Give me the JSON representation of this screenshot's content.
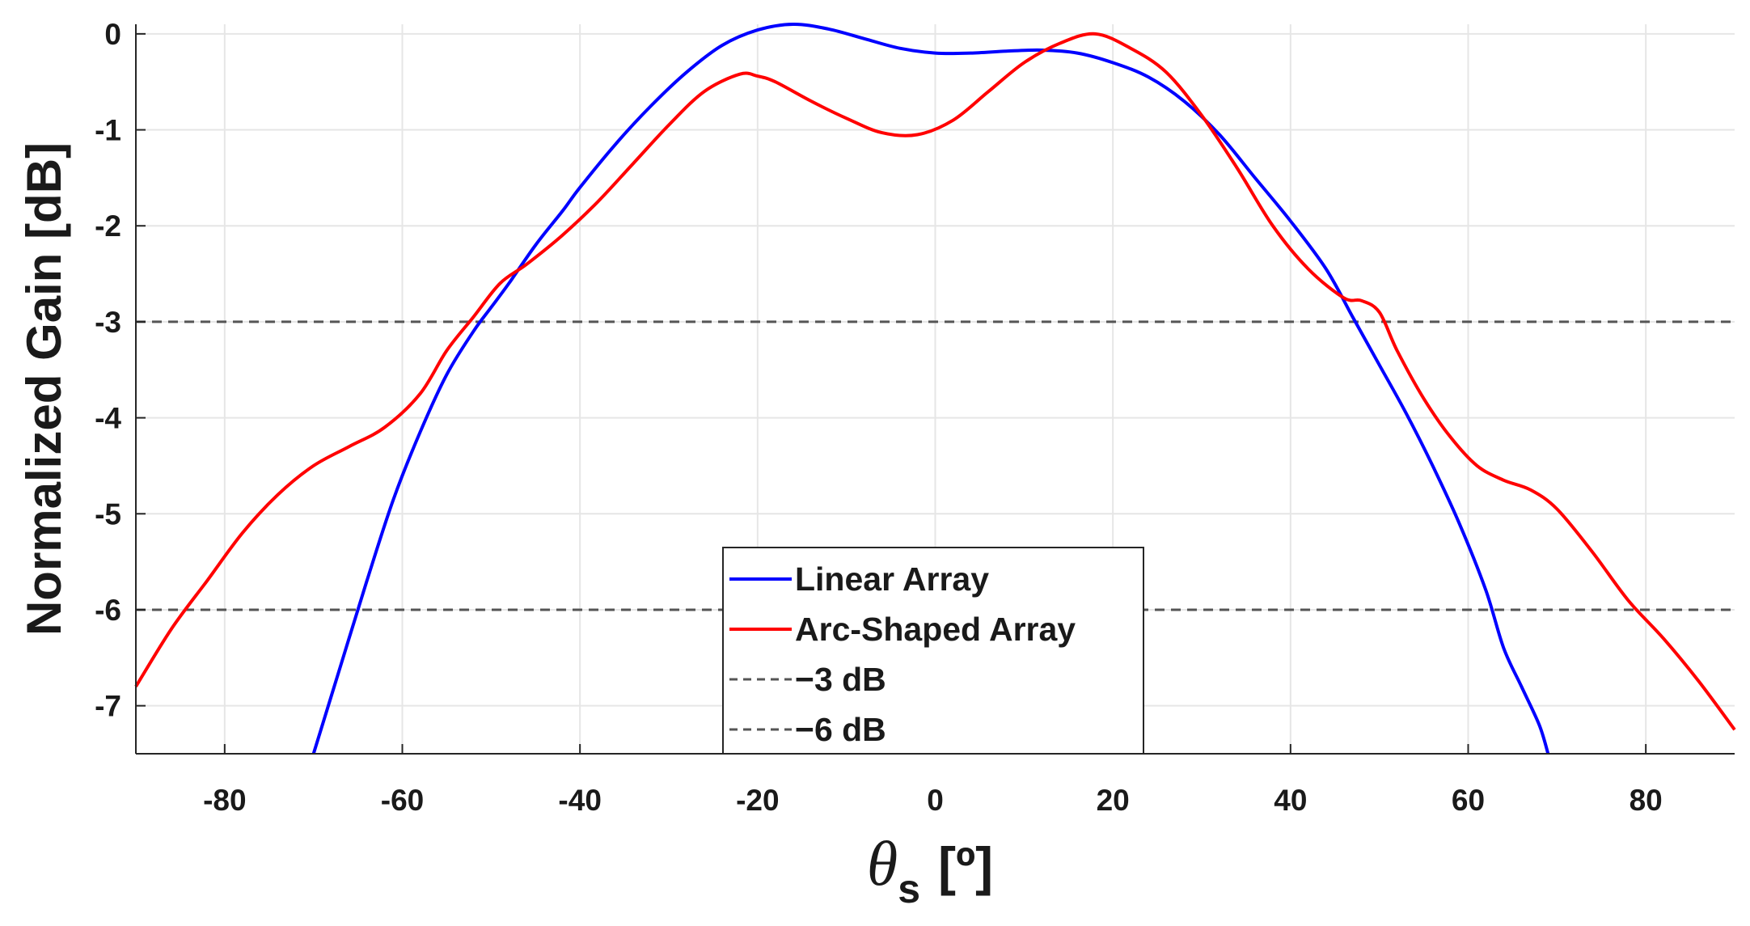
{
  "chart_data": {
    "type": "line",
    "xlabel": {
      "symbol": "θ",
      "subscript": "s",
      "unit": "[º]"
    },
    "ylabel": "Normalized Gain [dB]",
    "xlim": [
      -90,
      90
    ],
    "ylim": [
      -7.5,
      0.1
    ],
    "x_ticks": [
      -80,
      -60,
      -40,
      -20,
      0,
      20,
      40,
      60,
      80
    ],
    "y_ticks": [
      0,
      -1,
      -2,
      -3,
      -4,
      -5,
      -6,
      -7
    ],
    "x_tick_labels": [
      "-80",
      "-60",
      "-40",
      "-20",
      "0",
      "20",
      "40",
      "60",
      "80"
    ],
    "y_tick_labels": [
      "0",
      "-1",
      "-2",
      "-3",
      "-4",
      "-5",
      "-6",
      "-7"
    ],
    "grid": true,
    "legend_position": "bottom-center",
    "series": [
      {
        "name": "Linear Array",
        "color": "#0000ff",
        "style": "solid",
        "x": [
          -70,
          -67,
          -64,
          -61,
          -58,
          -55,
          -52,
          -50,
          -48,
          -45,
          -42,
          -40,
          -36,
          -32,
          -28,
          -24,
          -20,
          -16,
          -12,
          -8,
          -4,
          0,
          4,
          8,
          12,
          16,
          20,
          24,
          28,
          32,
          36,
          40,
          44,
          47,
          50,
          53,
          56,
          59,
          62,
          64,
          66,
          68,
          69
        ],
        "y": [
          -7.5,
          -6.6,
          -5.7,
          -4.85,
          -4.15,
          -3.55,
          -3.1,
          -2.85,
          -2.6,
          -2.2,
          -1.85,
          -1.6,
          -1.15,
          -0.75,
          -0.4,
          -0.12,
          0.04,
          0.1,
          0.05,
          -0.05,
          -0.15,
          -0.2,
          -0.2,
          -0.18,
          -0.17,
          -0.2,
          -0.3,
          -0.45,
          -0.7,
          -1.05,
          -1.5,
          -1.95,
          -2.45,
          -2.95,
          -3.45,
          -3.95,
          -4.5,
          -5.1,
          -5.8,
          -6.4,
          -6.8,
          -7.2,
          -7.5
        ]
      },
      {
        "name": "Arc-Shaped Array",
        "color": "#ff0000",
        "style": "solid",
        "x": [
          -90,
          -86,
          -82,
          -78,
          -74,
          -70,
          -66,
          -62,
          -58,
          -55,
          -52,
          -49,
          -46,
          -42,
          -38,
          -34,
          -30,
          -26,
          -22,
          -20,
          -18,
          -14,
          -10,
          -6,
          -2,
          2,
          6,
          10,
          14,
          18,
          22,
          26,
          30,
          34,
          38,
          42,
          46,
          48,
          50,
          52,
          55,
          58,
          61,
          64,
          67,
          70,
          74,
          78,
          82,
          86,
          90
        ],
        "y": [
          -6.8,
          -6.2,
          -5.7,
          -5.2,
          -4.8,
          -4.5,
          -4.3,
          -4.1,
          -3.75,
          -3.3,
          -2.95,
          -2.6,
          -2.4,
          -2.1,
          -1.75,
          -1.35,
          -0.95,
          -0.6,
          -0.42,
          -0.44,
          -0.5,
          -0.7,
          -0.88,
          -1.03,
          -1.05,
          -0.9,
          -0.6,
          -0.3,
          -0.1,
          0.0,
          -0.15,
          -0.4,
          -0.85,
          -1.4,
          -2.0,
          -2.45,
          -2.75,
          -2.78,
          -2.9,
          -3.3,
          -3.8,
          -4.2,
          -4.5,
          -4.65,
          -4.75,
          -4.95,
          -5.4,
          -5.9,
          -6.3,
          -6.75,
          -7.25
        ]
      },
      {
        "name": "−3 dB",
        "color": "#555555",
        "style": "dashed",
        "x": [
          -90,
          90
        ],
        "y": [
          -3,
          -3
        ]
      },
      {
        "name": "−6 dB",
        "color": "#555555",
        "style": "dashed",
        "x": [
          -90,
          90
        ],
        "y": [
          -6,
          -6
        ]
      }
    ]
  }
}
